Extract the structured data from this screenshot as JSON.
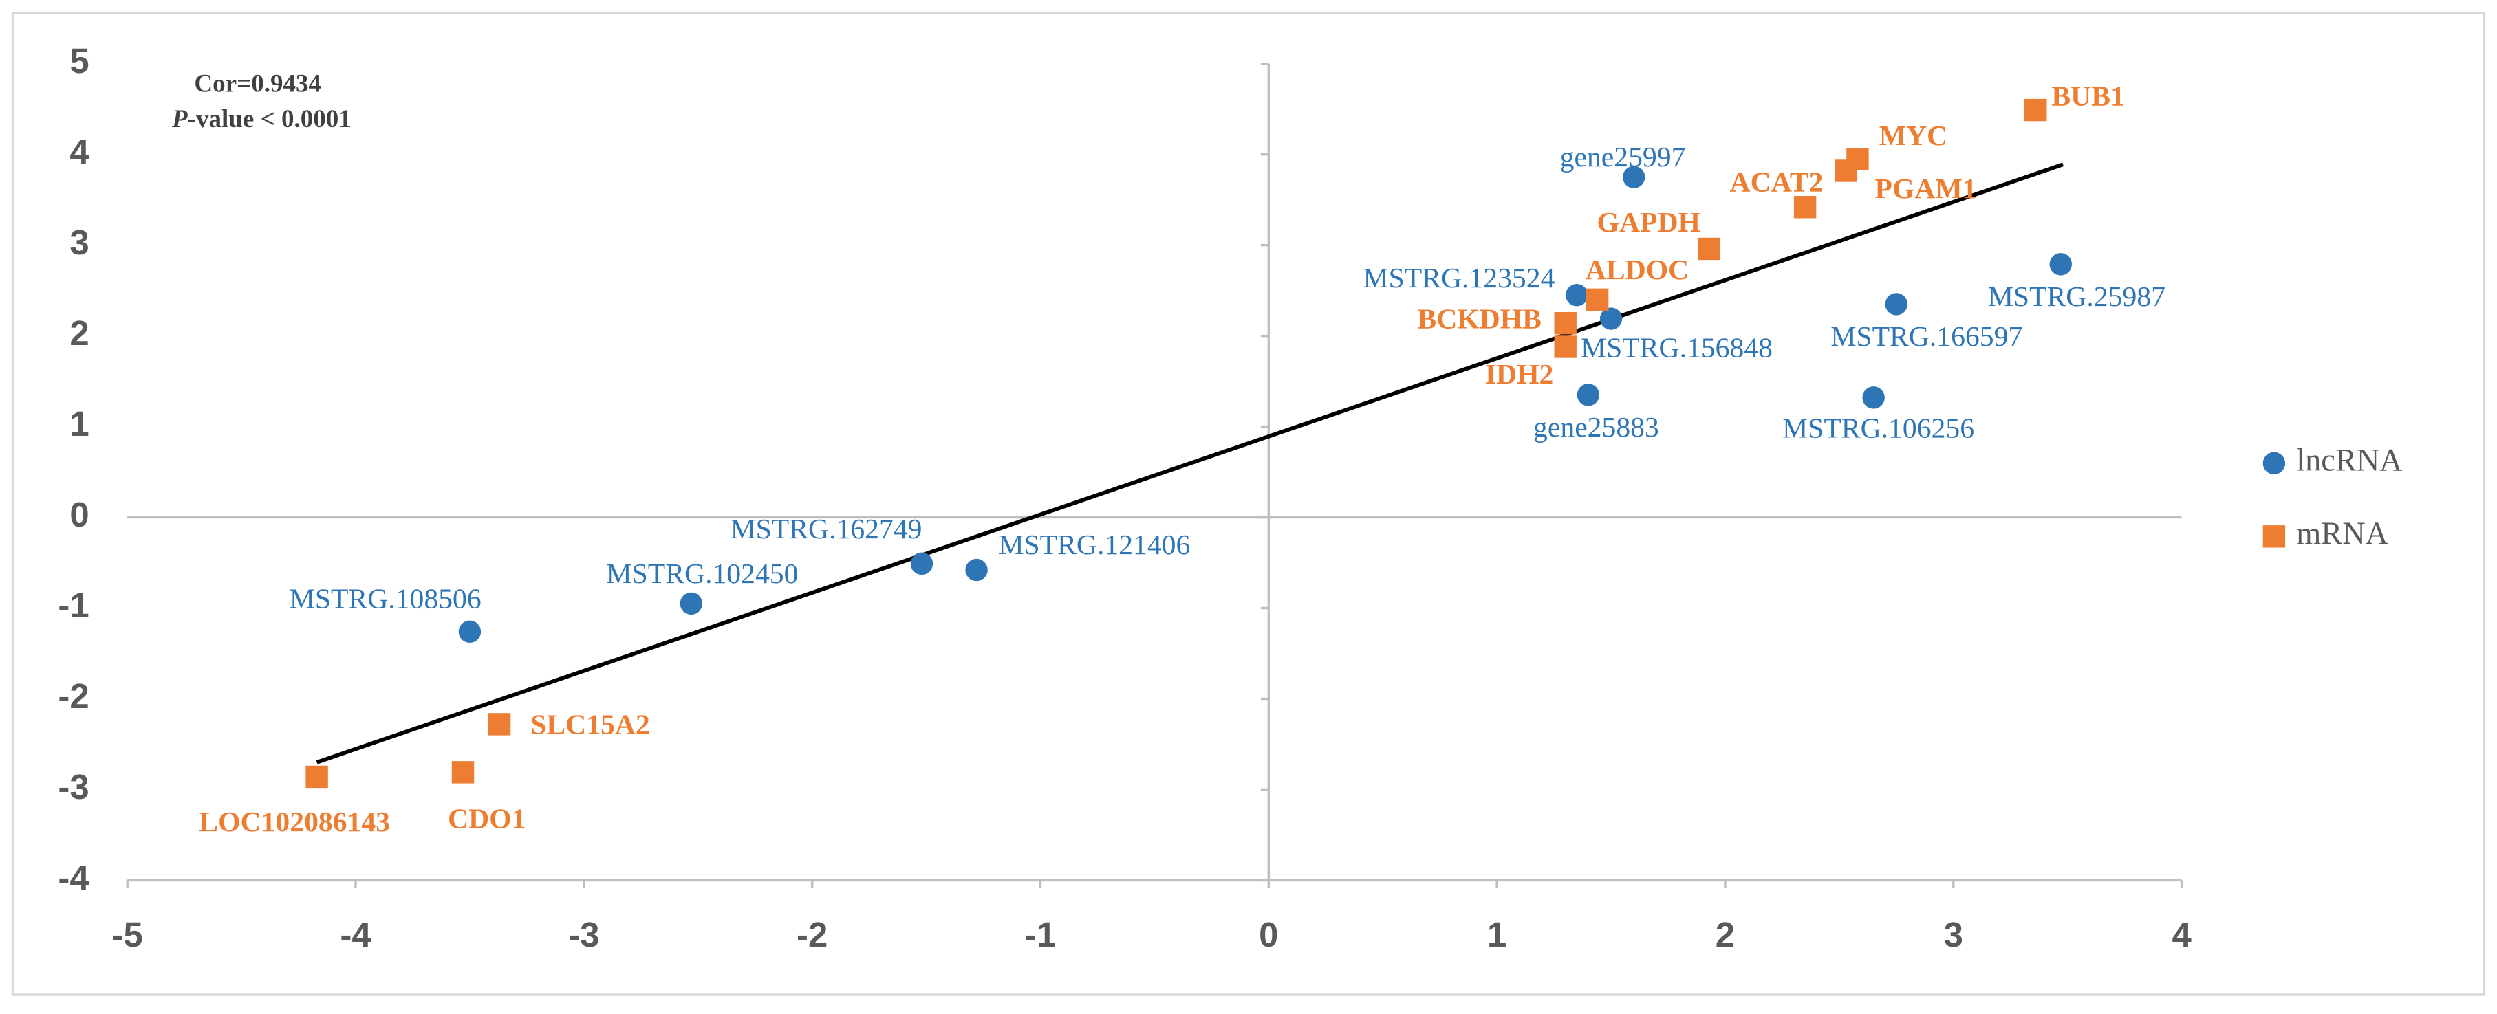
{
  "chart_data": {
    "type": "scatter",
    "xlim": [
      -5,
      4
    ],
    "xticks": [
      -5,
      -4,
      -3,
      -2,
      -1,
      0,
      1,
      2,
      3,
      4
    ],
    "ylim": [
      -4,
      5
    ],
    "yticks": [
      -4,
      -3,
      -2,
      -1,
      0,
      1,
      2,
      3,
      4,
      5
    ],
    "stat_text": "Cor=0.9434",
    "p_symbol": "P",
    "p_text": "-value < 0.0001",
    "legend": "right",
    "series": [
      {
        "name": "lncRNA",
        "color": "#2e75b6",
        "marker": "circle",
        "labels": [
          "gene25997",
          "MSTRG.123524",
          "MSTRG.156848",
          "gene25883",
          "MSTRG.166597",
          "MSTRG.25987",
          "MSTRG.106256",
          "MSTRG.162749",
          "MSTRG.121406",
          "MSTRG.102450",
          "MSTRG.108506"
        ],
        "x": [
          1.6,
          1.35,
          1.5,
          1.4,
          2.75,
          3.47,
          2.65,
          -1.52,
          -1.28,
          -2.53,
          -3.5
        ],
        "values": [
          3.75,
          2.45,
          2.19,
          1.35,
          2.35,
          2.79,
          1.32,
          -0.51,
          -0.58,
          -0.95,
          -1.26
        ]
      },
      {
        "name": "mRNA",
        "color": "#ed7d31",
        "marker": "square",
        "labels": [
          "BUB1",
          "MYC",
          "PGAM1",
          "ACAT2",
          "GAPDH",
          "ALDOC",
          "BCKDHB",
          "IDH2",
          "SLC15A2",
          "CDO1",
          "LOC102086143"
        ],
        "x": [
          3.36,
          2.58,
          2.53,
          2.35,
          1.93,
          1.44,
          1.3,
          1.3,
          -3.37,
          -3.53,
          -4.17
        ],
        "values": [
          4.49,
          3.95,
          3.82,
          3.42,
          2.96,
          2.4,
          2.14,
          1.88,
          -2.28,
          -2.81,
          -2.86
        ]
      }
    ],
    "trendline": {
      "color": "#000000",
      "x": [
        -4.17,
        3.48
      ],
      "values": [
        -2.7,
        3.89
      ]
    }
  }
}
